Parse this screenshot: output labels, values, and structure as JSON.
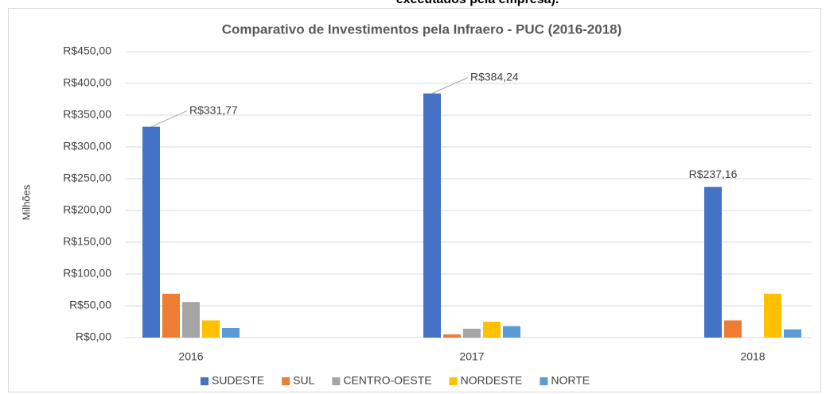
{
  "chart_data": {
    "type": "bar",
    "annotation": "executados pela empresa).",
    "title": "Comparativo de  Investimentos pela Infraero - PUC (2016-2018)",
    "y_label": "Milhões",
    "categories": [
      "2016",
      "2017",
      "2018"
    ],
    "series": [
      {
        "name": "SUDESTE",
        "color": "#4472c4",
        "values": [
          331.77,
          384.24,
          237.16
        ],
        "value_labels": [
          "R$331,77",
          "R$384,24",
          "R$237,16"
        ]
      },
      {
        "name": "SUL",
        "color": "#ed7d31",
        "values": [
          69,
          5,
          27
        ]
      },
      {
        "name": "CENTRO-OESTE",
        "color": "#a5a5a5",
        "values": [
          56,
          14,
          0
        ]
      },
      {
        "name": "NORDESTE",
        "color": "#ffc000",
        "values": [
          27,
          25,
          69
        ]
      },
      {
        "name": "NORTE",
        "color": "#5b9bd5",
        "values": [
          15,
          18,
          13
        ]
      }
    ],
    "ylim": [
      0,
      450
    ],
    "yticks": [
      {
        "value": 0,
        "label": "R$0,00"
      },
      {
        "value": 50,
        "label": "R$50,00"
      },
      {
        "value": 100,
        "label": "R$100,00"
      },
      {
        "value": 150,
        "label": "R$150,00"
      },
      {
        "value": 200,
        "label": "R$200,00"
      },
      {
        "value": 250,
        "label": "R$250,00"
      },
      {
        "value": 300,
        "label": "R$300,00"
      },
      {
        "value": 350,
        "label": "R$350,00"
      },
      {
        "value": 400,
        "label": "R$400,00"
      },
      {
        "value": 450,
        "label": "R$450,00"
      }
    ],
    "grid": true,
    "legend": "bottom"
  }
}
